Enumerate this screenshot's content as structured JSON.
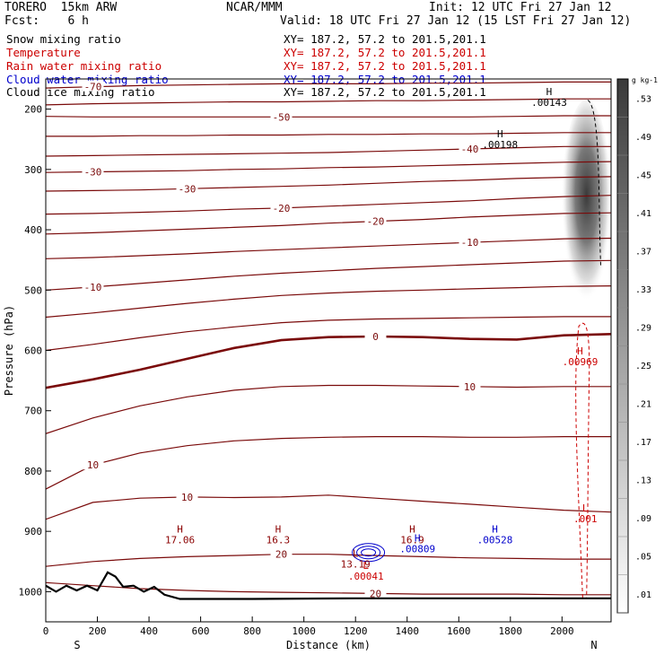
{
  "header": {
    "model": "TORERO  15km ARW",
    "center": "NCAR/MMM",
    "init": "Init: 12 UTC Fri 27 Jan 12",
    "fcst": "Fcst:    6 h",
    "valid": "Valid: 18 UTC Fri 27 Jan 12 (15 LST Fri 27 Jan 12)"
  },
  "legend": [
    {
      "name": "Snow mixing ratio",
      "xy": "XY= 187.2, 57.2 to 201.5,201.1",
      "color": "#000000"
    },
    {
      "name": "Temperature",
      "xy": "XY= 187.2, 57.2 to 201.5,201.1",
      "color": "#cc0000"
    },
    {
      "name": "Rain water mixing ratio",
      "xy": "XY= 187.2, 57.2 to 201.5,201.1",
      "color": "#cc0000"
    },
    {
      "name": "Cloud water mixing ratio",
      "xy": "XY= 187.2, 57.2 to 201.5,201.1",
      "color": "#0000cc"
    },
    {
      "name": "Cloud ice mixing ratio",
      "xy": "XY= 187.2, 57.2 to 201.5,201.1",
      "color": "#000000"
    }
  ],
  "chart_data": {
    "type": "contour",
    "xlabel": "Distance (km)",
    "ylabel": "Pressure (hPa)",
    "xlim": [
      0,
      2190
    ],
    "ylim": [
      150,
      1050
    ],
    "xticks": [
      0,
      200,
      400,
      600,
      800,
      1000,
      1200,
      1400,
      1600,
      1800,
      2000
    ],
    "yticks": [
      200,
      300,
      400,
      500,
      600,
      700,
      800,
      900,
      1000
    ],
    "x_end_labels": {
      "left": "S",
      "right": "N"
    },
    "temperature_contours": [
      {
        "label": "-70",
        "p": [
          165,
          163,
          161,
          160,
          159,
          158,
          158,
          158,
          157,
          157,
          156,
          155,
          155
        ]
      },
      {
        "label": "",
        "p": [
          193,
          191,
          190,
          189,
          188,
          188,
          187,
          186,
          186,
          185,
          184,
          183,
          183
        ]
      },
      {
        "label": "-50",
        "p": [
          212,
          213,
          213,
          213,
          213,
          213,
          213,
          213,
          213,
          213,
          212,
          211,
          211
        ]
      },
      {
        "label": "",
        "p": [
          245,
          245,
          244,
          244,
          243,
          243,
          242,
          242,
          241,
          241,
          240,
          239,
          239
        ]
      },
      {
        "label": "-40",
        "p": [
          278,
          277,
          276,
          275,
          274,
          273,
          272,
          270,
          268,
          266,
          264,
          262,
          262
        ]
      },
      {
        "label": "-30",
        "p": [
          305,
          304,
          303,
          302,
          300,
          299,
          297,
          296,
          294,
          292,
          290,
          288,
          287
        ]
      },
      {
        "label": "-30",
        "p": [
          336,
          335,
          334,
          332,
          330,
          328,
          326,
          323,
          320,
          318,
          315,
          313,
          312
        ]
      },
      {
        "label": "-20",
        "p": [
          374,
          373,
          371,
          369,
          366,
          364,
          361,
          358,
          355,
          352,
          348,
          345,
          343
        ]
      },
      {
        "label": "-20",
        "p": [
          407,
          405,
          402,
          399,
          396,
          393,
          389,
          386,
          383,
          379,
          376,
          373,
          372
        ]
      },
      {
        "label": "-10",
        "p": [
          448,
          446,
          443,
          440,
          436,
          433,
          430,
          427,
          424,
          421,
          418,
          415,
          414
        ]
      },
      {
        "label": "-10",
        "p": [
          500,
          495,
          489,
          483,
          477,
          472,
          468,
          464,
          461,
          458,
          455,
          452,
          451
        ]
      },
      {
        "label": "",
        "p": [
          545,
          538,
          530,
          522,
          515,
          509,
          505,
          502,
          500,
          498,
          496,
          494,
          493
        ]
      },
      {
        "label": "",
        "p": [
          600,
          590,
          579,
          569,
          561,
          554,
          550,
          548,
          547,
          546,
          545,
          544,
          544
        ]
      },
      {
        "label": "0",
        "p": [
          662,
          648,
          632,
          614,
          596,
          583,
          578,
          577,
          578,
          581,
          582,
          575,
          573
        ]
      },
      {
        "label": "10",
        "p": [
          738,
          712,
          692,
          677,
          666,
          660,
          658,
          658,
          659,
          660,
          661,
          660,
          660
        ]
      },
      {
        "label": "10",
        "p": [
          830,
          790,
          770,
          758,
          750,
          746,
          744,
          743,
          743,
          744,
          744,
          743,
          743
        ]
      },
      {
        "label": "10",
        "p": [
          880,
          852,
          845,
          843,
          844,
          843,
          840,
          845,
          850,
          855,
          860,
          865,
          868
        ]
      },
      {
        "label": "20",
        "p": [
          958,
          950,
          945,
          942,
          940,
          938,
          938,
          940,
          942,
          944,
          945,
          946,
          946
        ]
      },
      {
        "label": "20",
        "p": [
          985,
          990,
          995,
          998,
          1000,
          1001,
          1002,
          1003,
          1004,
          1004,
          1004,
          1005,
          1005
        ]
      }
    ],
    "extrema": [
      {
        "type": "H",
        "value": ".00143",
        "x": 1950,
        "p": 180,
        "color": "#000000"
      },
      {
        "type": "H",
        "value": ".00198",
        "x": 1760,
        "p": 250,
        "color": "#000000"
      },
      {
        "type": "H",
        "value": ".00969",
        "x": 2070,
        "p": 610,
        "color": "#cc0000"
      },
      {
        "type": "H",
        "value": "17.06",
        "x": 520,
        "p": 905,
        "color": "#8b0000"
      },
      {
        "type": "H",
        "value": "16.3",
        "x": 900,
        "p": 905,
        "color": "#8b0000"
      },
      {
        "type": "L",
        "value": "13.19",
        "x": 1200,
        "p": 945,
        "color": "#8b0000"
      },
      {
        "type": "L",
        "value": ".00041",
        "x": 1240,
        "p": 965,
        "color": "#cc0000"
      },
      {
        "type": "H",
        "value": "16.9",
        "x": 1420,
        "p": 905,
        "color": "#8b0000"
      },
      {
        "type": "H",
        "value": ".00809",
        "x": 1440,
        "p": 920,
        "color": "#0000cc"
      },
      {
        "type": "H",
        "value": ".00528",
        "x": 1740,
        "p": 905,
        "color": "#0000cc"
      },
      {
        "type": "L",
        "value": ".001",
        "x": 2090,
        "p": 870,
        "color": "#cc0000"
      }
    ],
    "colorbar": {
      "unit": "g kg-1",
      "ticks": [
        ".01",
        ".05",
        ".09",
        ".13",
        ".17",
        ".21",
        ".25",
        ".29",
        ".33",
        ".37",
        ".41",
        ".45",
        ".49",
        ".53"
      ]
    }
  }
}
